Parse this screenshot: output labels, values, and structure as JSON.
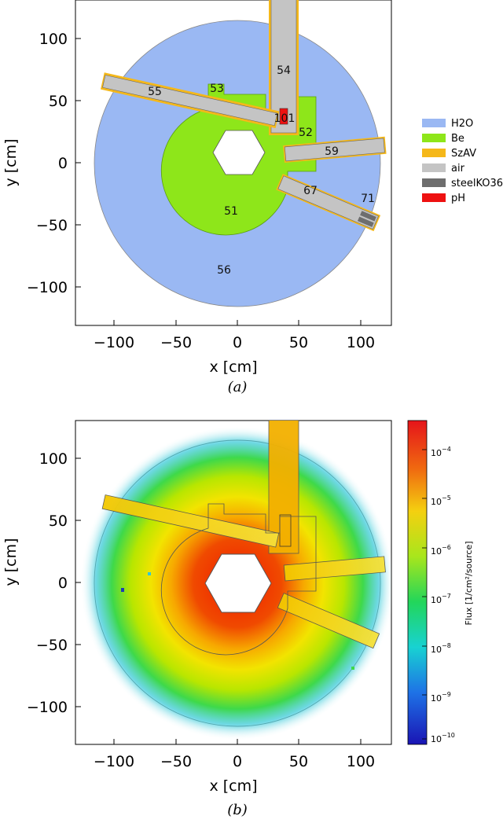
{
  "panel_a": {
    "xlabel": "x [cm]",
    "ylabel": "y [cm]",
    "xticks": [
      "−100",
      "−50",
      "0",
      "50",
      "100"
    ],
    "yticks": [
      "100",
      "50",
      "0",
      "−50",
      "−100"
    ],
    "regions": [
      "54",
      "55",
      "53",
      "101",
      "52",
      "59",
      "67",
      "71",
      "51",
      "56"
    ],
    "legend": [
      {
        "label": "H2O",
        "color": "#9ab8f3"
      },
      {
        "label": "Be",
        "color": "#8ee61a"
      },
      {
        "label": "SzAV",
        "color": "#f5b81a"
      },
      {
        "label": "air",
        "color": "#c4c4c4"
      },
      {
        "label": "steelKO36",
        "color": "#6e6e6e"
      },
      {
        "label": "pH",
        "color": "#ee1111"
      }
    ],
    "caption": "(a)"
  },
  "panel_b": {
    "xlabel": "x [cm]",
    "ylabel": "y [cm]",
    "xticks": [
      "−100",
      "−50",
      "0",
      "50",
      "100"
    ],
    "yticks": [
      "100",
      "50",
      "0",
      "−50",
      "−100"
    ],
    "colorbar_label": "Flux [1/cm²/source]",
    "colorbar_ticks": [
      "10",
      "10",
      "10",
      "10",
      "10",
      "10",
      "10"
    ],
    "colorbar_exps": [
      "−4",
      "−5",
      "−6",
      "−7",
      "−8",
      "−9",
      "−10"
    ],
    "caption": "(b)"
  }
}
